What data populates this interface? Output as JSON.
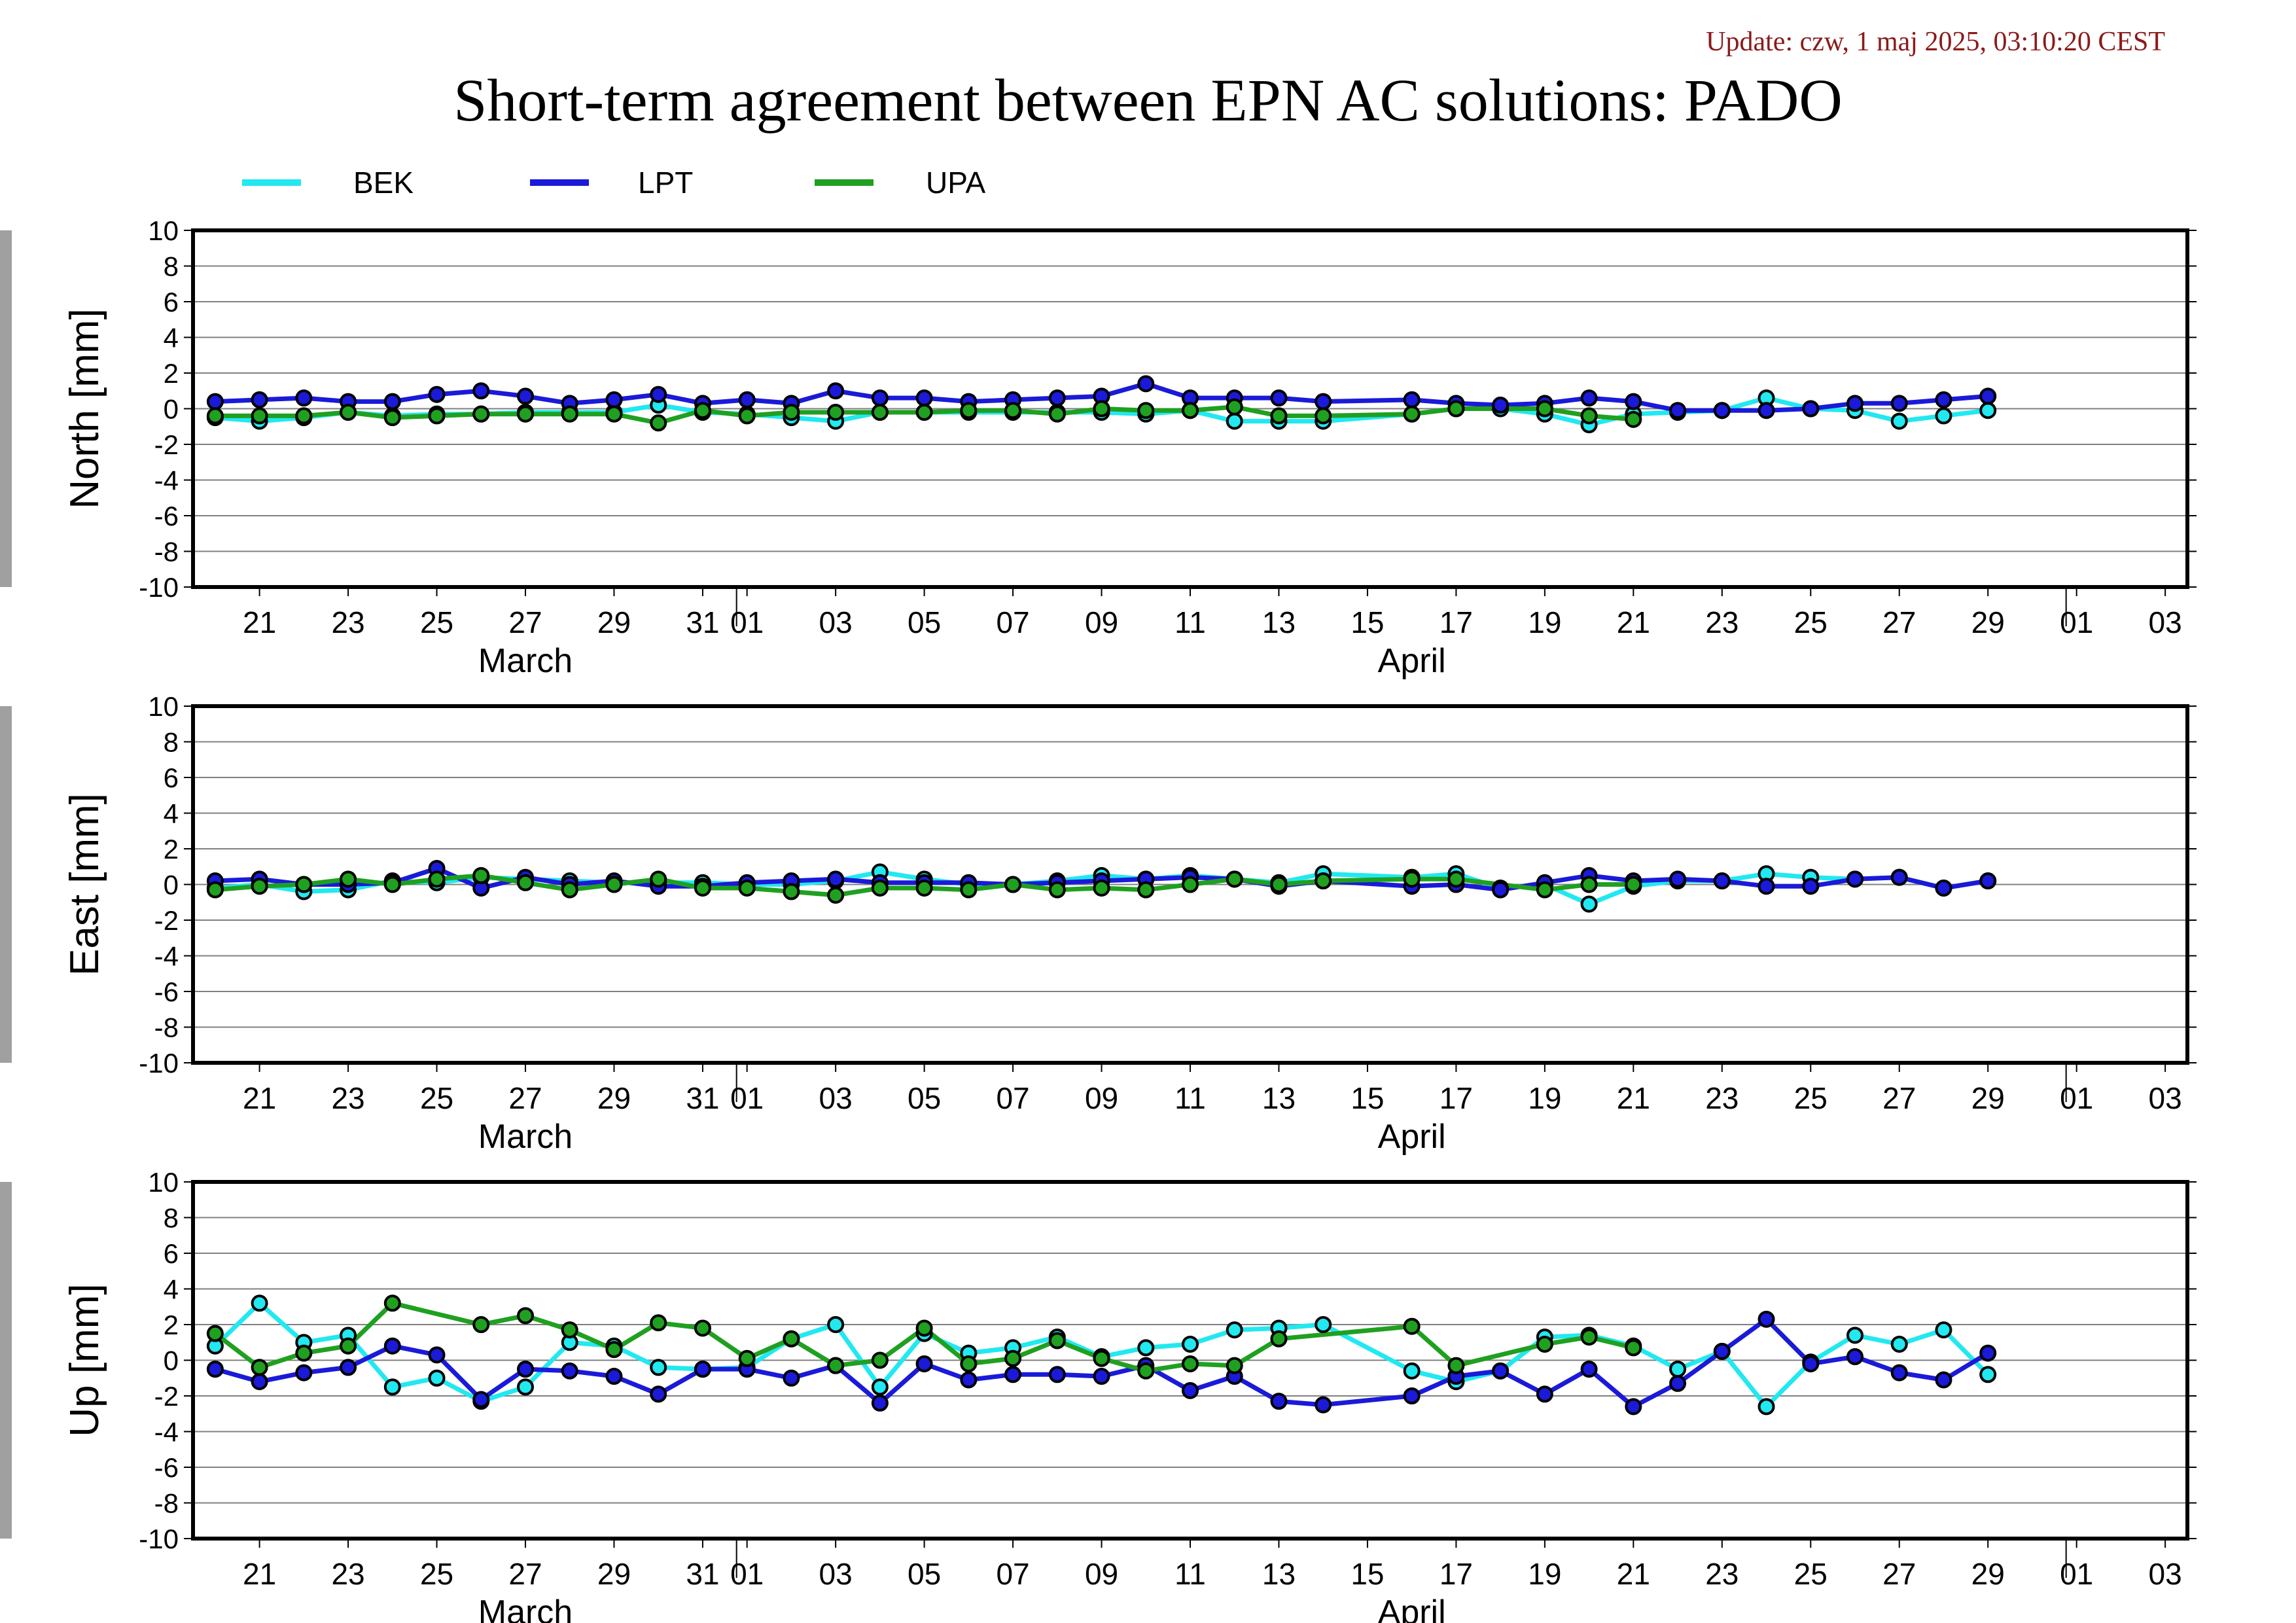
{
  "update_text": "Update: czw, 1 maj 2025, 03:10:20 CEST",
  "title": "Short-term agreement between EPN AC solutions: PADO",
  "legend": [
    {
      "label": "BEK",
      "color": "#22e8f0"
    },
    {
      "label": "LPT",
      "color": "#1a1ad8"
    },
    {
      "label": "UPA",
      "color": "#1fa020"
    }
  ],
  "colors": {
    "BEK": "#22e8f0",
    "LPT": "#1a1ad8",
    "UPA": "#1fa020",
    "gap_marker": "#a0a0a0",
    "grid": "#808080"
  },
  "chart_data": {
    "type": "line",
    "x_range": [
      "2025-03-19T12:00",
      "2025-05-03T12:00"
    ],
    "x_ticks": [
      "21",
      "23",
      "25",
      "27",
      "29",
      "31",
      "01",
      "03",
      "05",
      "07",
      "09",
      "11",
      "13",
      "15",
      "17",
      "19",
      "21",
      "23",
      "25",
      "27",
      "29",
      "01",
      "03"
    ],
    "month_labels": [
      "March",
      "April"
    ],
    "gap_marker_date": "2025-04-30",
    "days": [
      "03-20",
      "03-21",
      "03-22",
      "03-23",
      "03-24",
      "03-25",
      "03-26",
      "03-27",
      "03-28",
      "03-29",
      "03-30",
      "03-31",
      "04-01",
      "04-02",
      "04-03",
      "04-04",
      "04-05",
      "04-06",
      "04-07",
      "04-08",
      "04-09",
      "04-10",
      "04-11",
      "04-12",
      "04-13",
      "04-14",
      "04-16",
      "04-17",
      "04-18",
      "04-19",
      "04-20",
      "04-21",
      "04-22",
      "04-23",
      "04-24",
      "04-25",
      "04-26",
      "04-27",
      "04-28",
      "04-29"
    ],
    "panels": [
      {
        "ylabel": "North [mm]",
        "ylim": [
          -10,
          10
        ],
        "yticks": [
          10,
          8,
          6,
          4,
          2,
          0,
          -2,
          -4,
          -6,
          -8,
          -10
        ],
        "series": [
          {
            "name": "BEK",
            "values": [
              -0.5,
              -0.7,
              -0.5,
              -0.2,
              -0.4,
              -0.3,
              -0.3,
              -0.2,
              -0.2,
              -0.2,
              0.2,
              -0.2,
              -0.3,
              -0.5,
              -0.7,
              -0.2,
              -0.2,
              -0.2,
              -0.2,
              -0.2,
              -0.2,
              -0.3,
              -0.1,
              -0.7,
              -0.7,
              -0.7,
              -0.3,
              0.0,
              0.0,
              -0.3,
              -0.9,
              -0.3,
              -0.2,
              -0.1,
              0.6,
              0.0,
              -0.1,
              -0.7,
              -0.4,
              -0.1
            ]
          },
          {
            "name": "LPT",
            "values": [
              0.4,
              0.5,
              0.6,
              0.4,
              0.4,
              0.8,
              1.0,
              0.7,
              0.3,
              0.5,
              0.8,
              0.3,
              0.5,
              0.3,
              1.0,
              0.6,
              0.6,
              0.4,
              0.5,
              0.6,
              0.7,
              1.4,
              0.6,
              0.6,
              0.6,
              0.4,
              0.5,
              0.3,
              0.2,
              0.3,
              0.6,
              0.4,
              -0.1,
              -0.1,
              -0.1,
              0.0,
              0.3,
              0.3,
              0.5,
              0.7
            ]
          },
          {
            "name": "UPA",
            "values": [
              -0.4,
              -0.4,
              -0.4,
              -0.2,
              -0.5,
              -0.4,
              -0.3,
              -0.3,
              -0.3,
              -0.3,
              -0.8,
              -0.1,
              -0.4,
              -0.2,
              -0.2,
              -0.2,
              -0.2,
              -0.1,
              -0.1,
              -0.3,
              0.0,
              -0.1,
              -0.1,
              0.1,
              -0.4,
              -0.4,
              -0.3,
              0.0,
              null,
              0.0,
              -0.4,
              -0.6,
              null,
              null,
              null,
              null,
              null,
              null,
              null,
              null
            ]
          }
        ]
      },
      {
        "ylabel": "East [mm]",
        "ylim": [
          -10,
          10
        ],
        "yticks": [
          10,
          8,
          6,
          4,
          2,
          0,
          -2,
          -4,
          -6,
          -8,
          -10
        ],
        "series": [
          {
            "name": "BEK",
            "values": [
              -0.2,
              0.0,
              -0.4,
              -0.3,
              0.2,
              0.1,
              0.4,
              0.3,
              0.2,
              0.1,
              0.1,
              0.1,
              0.0,
              0.0,
              0.2,
              0.7,
              0.3,
              0.0,
              0.0,
              0.2,
              0.5,
              0.3,
              0.5,
              0.3,
              0.1,
              0.6,
              0.4,
              0.6,
              -0.2,
              0.0,
              -1.1,
              -0.1,
              0.2,
              0.2,
              0.6,
              0.4,
              0.3,
              0.4,
              -0.2,
              0.2
            ]
          },
          {
            "name": "LPT",
            "values": [
              0.2,
              0.3,
              0.0,
              0.0,
              0.1,
              0.9,
              -0.2,
              0.4,
              0.0,
              0.2,
              -0.1,
              -0.1,
              0.1,
              0.2,
              0.3,
              0.1,
              0.1,
              0.1,
              0.0,
              0.1,
              0.2,
              0.3,
              0.4,
              0.3,
              -0.1,
              0.2,
              -0.1,
              0.0,
              -0.3,
              0.1,
              0.5,
              0.2,
              0.3,
              0.2,
              -0.1,
              -0.1,
              0.3,
              0.4,
              -0.2,
              0.2
            ]
          },
          {
            "name": "UPA",
            "values": [
              -0.3,
              -0.1,
              0.0,
              0.3,
              0.0,
              0.3,
              0.5,
              0.1,
              -0.3,
              0.0,
              0.3,
              -0.2,
              -0.2,
              -0.4,
              -0.6,
              -0.2,
              -0.2,
              -0.3,
              0.0,
              -0.3,
              -0.2,
              -0.3,
              0.0,
              0.3,
              0.0,
              0.2,
              0.3,
              0.3,
              null,
              -0.3,
              0.0,
              0.0,
              null,
              null,
              null,
              null,
              null,
              null,
              null,
              null
            ]
          }
        ]
      },
      {
        "ylabel": "Up [mm]",
        "ylim": [
          -10,
          10
        ],
        "yticks": [
          10,
          8,
          6,
          4,
          2,
          0,
          -2,
          -4,
          -6,
          -8,
          -10
        ],
        "series": [
          {
            "name": "BEK",
            "values": [
              0.8,
              3.2,
              1.0,
              1.4,
              -1.5,
              -1.0,
              -2.3,
              -1.5,
              1.0,
              0.8,
              -0.4,
              -0.5,
              -0.4,
              1.2,
              2.0,
              -1.5,
              1.5,
              0.4,
              0.7,
              1.3,
              0.2,
              0.7,
              0.9,
              1.7,
              1.8,
              2.0,
              -0.6,
              -1.2,
              -0.6,
              1.3,
              1.4,
              0.8,
              -0.5,
              0.5,
              -2.6,
              -0.1,
              1.4,
              0.9,
              1.7,
              -0.8
            ]
          },
          {
            "name": "LPT",
            "values": [
              -0.5,
              -1.2,
              -0.7,
              -0.4,
              0.8,
              0.3,
              -2.2,
              -0.5,
              -0.6,
              -0.9,
              -1.9,
              -0.5,
              -0.5,
              -1.0,
              -0.3,
              -2.4,
              -0.2,
              -1.1,
              -0.8,
              -0.8,
              -0.9,
              -0.3,
              -1.7,
              -0.9,
              -2.3,
              -2.5,
              -2.0,
              -0.9,
              -0.6,
              -1.9,
              -0.5,
              -2.6,
              -1.3,
              0.5,
              2.3,
              -0.2,
              0.2,
              -0.7,
              -1.1,
              0.4
            ]
          },
          {
            "name": "UPA",
            "values": [
              1.5,
              -0.4,
              0.4,
              0.8,
              3.2,
              null,
              2.0,
              2.5,
              1.7,
              0.6,
              2.1,
              1.8,
              0.1,
              1.2,
              -0.3,
              0.0,
              1.8,
              -0.2,
              0.1,
              1.1,
              0.1,
              -0.6,
              -0.2,
              -0.3,
              1.2,
              null,
              1.9,
              -0.3,
              null,
              0.9,
              1.3,
              0.7,
              null,
              null,
              null,
              null,
              null,
              null,
              null,
              null
            ]
          }
        ]
      }
    ]
  }
}
